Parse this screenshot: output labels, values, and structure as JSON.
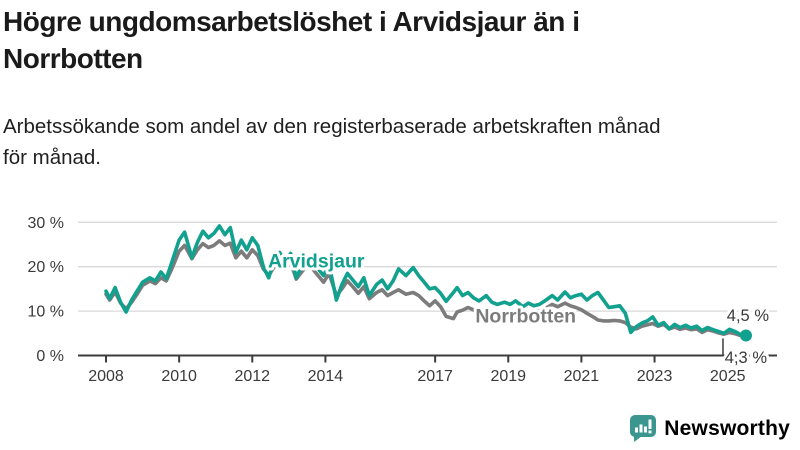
{
  "header": {
    "title": "Högre ungdomsarbetslöshet i Arvidsjaur än i\nNorrbotten",
    "subtitle": "Arbetssökande som andel av den registerbaserade arbetskraften månad\nför månad."
  },
  "branding": {
    "name": "Newsworthy",
    "logo_icon": "bar-chart-speech-bubble",
    "color": "#3A968F"
  },
  "colors": {
    "arvidsjaur": "#12A08F",
    "norrbotten": "#7C7C7C",
    "axis": "#3C3C3C",
    "grid": "#D9D9D9",
    "tick_label": "#3A3A3A",
    "end_label": "#3A3A3A"
  },
  "chart_data": {
    "type": "line",
    "x_unit": "decimal_year_monthly",
    "xlim": [
      2007.8,
      2026.2
    ],
    "ylim": [
      0,
      32
    ],
    "grid": "horizontal",
    "legend_position": "inline-labels",
    "y_ticks": [
      {
        "value": 0,
        "label": "0 %"
      },
      {
        "value": 10,
        "label": "10 %"
      },
      {
        "value": 20,
        "label": "20 %"
      },
      {
        "value": 30,
        "label": "30 %"
      }
    ],
    "x_ticks": [
      {
        "value": 2008,
        "label": "2008"
      },
      {
        "value": 2010,
        "label": "2010"
      },
      {
        "value": 2012,
        "label": "2012"
      },
      {
        "value": 2014,
        "label": "2014"
      },
      {
        "value": 2017,
        "label": "2017"
      },
      {
        "value": 2019,
        "label": "2019"
      },
      {
        "value": 2021,
        "label": "2021"
      },
      {
        "value": 2023,
        "label": "2023"
      },
      {
        "value": 2025,
        "label": "2025"
      }
    ],
    "series": [
      {
        "name": "Norrbotten",
        "color": "#7C7C7C",
        "end_value": 4.3,
        "end_label": "4,3 %",
        "label_anchor": {
          "x": 2018.1,
          "y": 7.4
        },
        "points": [
          [
            2008.0,
            13.8
          ],
          [
            2008.1,
            12.5
          ],
          [
            2008.25,
            14.3
          ],
          [
            2008.4,
            11.8
          ],
          [
            2008.55,
            10.5
          ],
          [
            2008.7,
            12.0
          ],
          [
            2008.85,
            13.8
          ],
          [
            2009.0,
            15.8
          ],
          [
            2009.2,
            16.8
          ],
          [
            2009.35,
            16.2
          ],
          [
            2009.5,
            17.5
          ],
          [
            2009.65,
            16.8
          ],
          [
            2009.8,
            19.5
          ],
          [
            2010.0,
            23.5
          ],
          [
            2010.15,
            24.8
          ],
          [
            2010.35,
            21.8
          ],
          [
            2010.5,
            23.8
          ],
          [
            2010.65,
            25.2
          ],
          [
            2010.8,
            24.3
          ],
          [
            2010.95,
            24.8
          ],
          [
            2011.1,
            25.8
          ],
          [
            2011.25,
            24.8
          ],
          [
            2011.4,
            25.3
          ],
          [
            2011.55,
            22.0
          ],
          [
            2011.7,
            23.5
          ],
          [
            2011.85,
            22.0
          ],
          [
            2012.0,
            23.8
          ],
          [
            2012.15,
            22.5
          ],
          [
            2012.3,
            19.5
          ],
          [
            2012.45,
            18.0
          ],
          [
            2012.6,
            20.0
          ],
          [
            2012.75,
            21.2
          ],
          [
            2012.9,
            19.5
          ],
          [
            2013.05,
            21.0
          ],
          [
            2013.2,
            17.2
          ],
          [
            2013.35,
            18.8
          ],
          [
            2013.5,
            20.2
          ],
          [
            2013.65,
            19.5
          ],
          [
            2013.8,
            18.0
          ],
          [
            2013.95,
            16.5
          ],
          [
            2014.1,
            18.5
          ],
          [
            2014.3,
            13.5
          ],
          [
            2014.45,
            15.0
          ],
          [
            2014.6,
            16.8
          ],
          [
            2014.75,
            15.5
          ],
          [
            2014.9,
            14.0
          ],
          [
            2015.05,
            15.5
          ],
          [
            2015.2,
            12.8
          ],
          [
            2015.4,
            14.2
          ],
          [
            2015.55,
            14.8
          ],
          [
            2015.7,
            13.5
          ],
          [
            2015.85,
            14.2
          ],
          [
            2016.0,
            14.8
          ],
          [
            2016.2,
            13.8
          ],
          [
            2016.4,
            14.2
          ],
          [
            2016.55,
            13.5
          ],
          [
            2016.7,
            12.3
          ],
          [
            2016.85,
            11.2
          ],
          [
            2017.0,
            12.3
          ],
          [
            2017.15,
            11.0
          ],
          [
            2017.3,
            8.8
          ],
          [
            2017.5,
            8.3
          ],
          [
            2017.6,
            9.8
          ],
          [
            2017.75,
            10.2
          ],
          [
            2017.9,
            10.8
          ],
          [
            2018.05,
            10.3
          ],
          [
            2018.2,
            9.5
          ],
          [
            2018.4,
            10.2
          ],
          [
            2018.55,
            9.8
          ],
          [
            2018.7,
            9.3
          ],
          [
            2018.9,
            9.6
          ],
          [
            2019.05,
            9.8
          ],
          [
            2019.2,
            9.3
          ],
          [
            2019.4,
            9.6
          ],
          [
            2019.55,
            9.0
          ],
          [
            2019.7,
            9.3
          ],
          [
            2019.85,
            10.0
          ],
          [
            2020.0,
            10.5
          ],
          [
            2020.2,
            11.5
          ],
          [
            2020.35,
            11.0
          ],
          [
            2020.55,
            11.8
          ],
          [
            2020.7,
            11.2
          ],
          [
            2020.85,
            10.8
          ],
          [
            2021.0,
            10.3
          ],
          [
            2021.15,
            9.5
          ],
          [
            2021.3,
            8.8
          ],
          [
            2021.45,
            8.0
          ],
          [
            2021.6,
            7.8
          ],
          [
            2021.75,
            7.8
          ],
          [
            2021.9,
            7.9
          ],
          [
            2022.05,
            7.8
          ],
          [
            2022.2,
            7.4
          ],
          [
            2022.35,
            6.4
          ],
          [
            2022.5,
            6.0
          ],
          [
            2022.65,
            6.6
          ],
          [
            2022.8,
            6.9
          ],
          [
            2022.95,
            7.2
          ],
          [
            2023.1,
            6.6
          ],
          [
            2023.25,
            7.0
          ],
          [
            2023.4,
            6.0
          ],
          [
            2023.55,
            6.4
          ],
          [
            2023.7,
            5.9
          ],
          [
            2023.85,
            6.2
          ],
          [
            2024.0,
            5.8
          ],
          [
            2024.15,
            6.0
          ],
          [
            2024.3,
            5.2
          ],
          [
            2024.45,
            5.8
          ],
          [
            2024.6,
            5.5
          ],
          [
            2024.75,
            5.1
          ],
          [
            2024.9,
            4.8
          ],
          [
            2025.05,
            5.2
          ],
          [
            2025.2,
            4.9
          ],
          [
            2025.35,
            4.5
          ],
          [
            2025.5,
            4.3
          ]
        ]
      },
      {
        "name": "Arvidsjaur",
        "color": "#12A08F",
        "end_value": 4.5,
        "end_label": "4,5 %",
        "end_dot": true,
        "label_anchor": {
          "x": 2012.43,
          "y": 19.8
        },
        "points": [
          [
            2008.0,
            14.5
          ],
          [
            2008.1,
            12.8
          ],
          [
            2008.25,
            15.3
          ],
          [
            2008.4,
            12.0
          ],
          [
            2008.55,
            9.8
          ],
          [
            2008.7,
            12.5
          ],
          [
            2008.85,
            14.5
          ],
          [
            2009.0,
            16.5
          ],
          [
            2009.2,
            17.5
          ],
          [
            2009.35,
            16.8
          ],
          [
            2009.5,
            18.8
          ],
          [
            2009.65,
            17.3
          ],
          [
            2009.8,
            21.0
          ],
          [
            2010.0,
            26.0
          ],
          [
            2010.15,
            27.8
          ],
          [
            2010.35,
            22.0
          ],
          [
            2010.5,
            25.5
          ],
          [
            2010.65,
            28.0
          ],
          [
            2010.8,
            26.5
          ],
          [
            2010.95,
            27.5
          ],
          [
            2011.1,
            29.2
          ],
          [
            2011.25,
            27.2
          ],
          [
            2011.4,
            28.8
          ],
          [
            2011.55,
            23.2
          ],
          [
            2011.7,
            26.0
          ],
          [
            2011.85,
            23.8
          ],
          [
            2012.0,
            26.5
          ],
          [
            2012.15,
            24.8
          ],
          [
            2012.3,
            20.0
          ],
          [
            2012.45,
            17.5
          ],
          [
            2012.6,
            21.5
          ],
          [
            2012.75,
            23.2
          ],
          [
            2012.9,
            21.0
          ],
          [
            2013.05,
            23.0
          ],
          [
            2013.2,
            17.5
          ],
          [
            2013.35,
            20.0
          ],
          [
            2013.5,
            22.0
          ],
          [
            2013.65,
            21.0
          ],
          [
            2013.8,
            19.5
          ],
          [
            2013.95,
            18.0
          ],
          [
            2014.1,
            20.5
          ],
          [
            2014.3,
            12.5
          ],
          [
            2014.45,
            16.0
          ],
          [
            2014.6,
            18.5
          ],
          [
            2014.75,
            17.0
          ],
          [
            2014.9,
            15.5
          ],
          [
            2015.05,
            17.5
          ],
          [
            2015.2,
            13.5
          ],
          [
            2015.4,
            16.0
          ],
          [
            2015.55,
            17.0
          ],
          [
            2015.7,
            15.0
          ],
          [
            2015.85,
            16.8
          ],
          [
            2016.0,
            19.5
          ],
          [
            2016.2,
            18.0
          ],
          [
            2016.4,
            19.8
          ],
          [
            2016.55,
            18.0
          ],
          [
            2016.7,
            16.5
          ],
          [
            2016.85,
            15.0
          ],
          [
            2017.0,
            15.3
          ],
          [
            2017.15,
            14.0
          ],
          [
            2017.3,
            12.2
          ],
          [
            2017.5,
            14.2
          ],
          [
            2017.6,
            15.3
          ],
          [
            2017.75,
            13.5
          ],
          [
            2017.9,
            14.2
          ],
          [
            2018.05,
            13.0
          ],
          [
            2018.2,
            12.3
          ],
          [
            2018.4,
            13.5
          ],
          [
            2018.55,
            12.0
          ],
          [
            2018.7,
            11.5
          ],
          [
            2018.9,
            12.0
          ],
          [
            2019.05,
            11.5
          ],
          [
            2019.2,
            12.3
          ],
          [
            2019.4,
            11.0
          ],
          [
            2019.55,
            11.8
          ],
          [
            2019.7,
            11.2
          ],
          [
            2019.85,
            11.5
          ],
          [
            2020.0,
            12.3
          ],
          [
            2020.2,
            13.5
          ],
          [
            2020.35,
            12.5
          ],
          [
            2020.55,
            14.3
          ],
          [
            2020.7,
            13.0
          ],
          [
            2020.85,
            13.5
          ],
          [
            2021.0,
            13.8
          ],
          [
            2021.15,
            12.5
          ],
          [
            2021.3,
            13.5
          ],
          [
            2021.45,
            14.2
          ],
          [
            2021.6,
            12.5
          ],
          [
            2021.75,
            10.8
          ],
          [
            2021.9,
            11.0
          ],
          [
            2022.05,
            11.2
          ],
          [
            2022.2,
            9.5
          ],
          [
            2022.35,
            5.2
          ],
          [
            2022.5,
            6.5
          ],
          [
            2022.65,
            7.3
          ],
          [
            2022.8,
            7.8
          ],
          [
            2022.95,
            8.7
          ],
          [
            2023.1,
            6.8
          ],
          [
            2023.25,
            7.4
          ],
          [
            2023.4,
            6.0
          ],
          [
            2023.55,
            7.0
          ],
          [
            2023.7,
            6.3
          ],
          [
            2023.85,
            6.8
          ],
          [
            2024.0,
            6.2
          ],
          [
            2024.15,
            6.6
          ],
          [
            2024.3,
            5.6
          ],
          [
            2024.45,
            6.3
          ],
          [
            2024.6,
            5.8
          ],
          [
            2024.75,
            5.4
          ],
          [
            2024.9,
            5.0
          ],
          [
            2025.05,
            5.9
          ],
          [
            2025.2,
            5.4
          ],
          [
            2025.35,
            4.7
          ],
          [
            2025.5,
            4.5
          ]
        ]
      }
    ]
  }
}
